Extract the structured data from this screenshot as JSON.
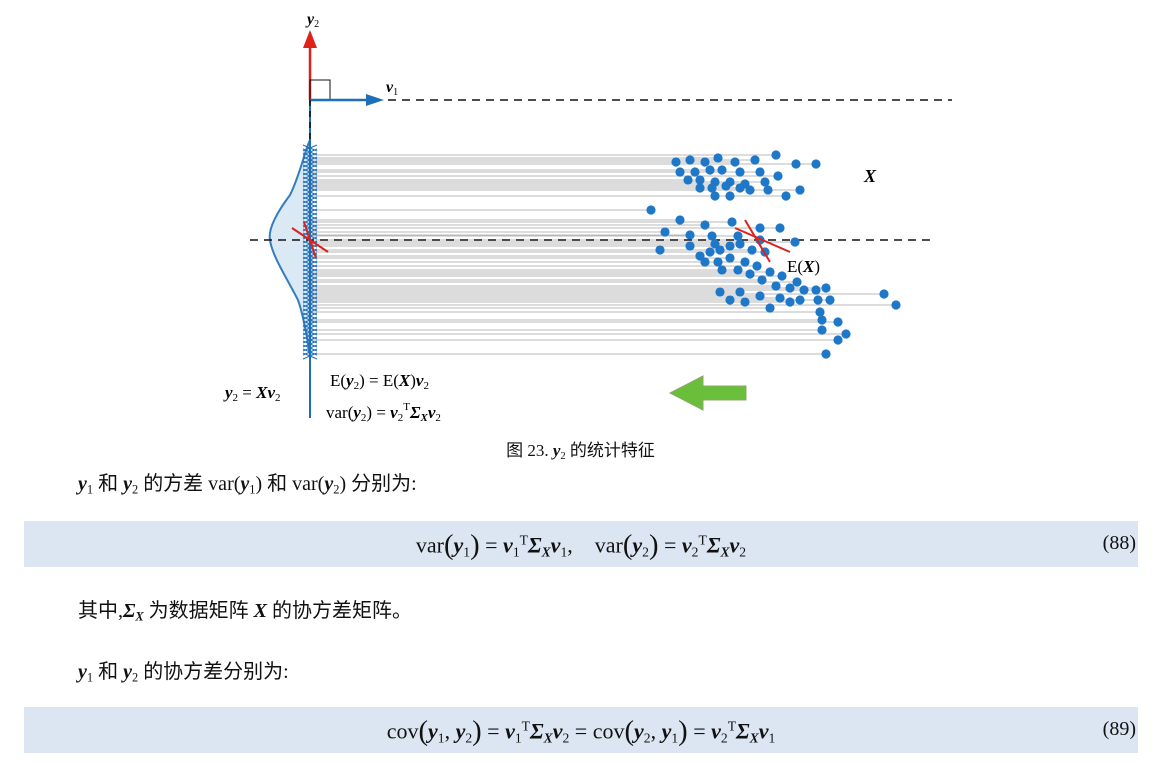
{
  "figure": {
    "v1_label": "v",
    "v1_sub": "1",
    "v2_label": "y",
    "v2_sub": "2",
    "X_label": "X",
    "EX_label": "E(X)",
    "eq_y2": "y2 = Xv2",
    "eq_E": "E(y2) = E(X)v2",
    "eq_var": "var(y2) = v2TΣXv2",
    "colors": {
      "points": "#1f77c8",
      "v1": "#1f6fb8",
      "v2": "#e0201b",
      "arrow": "#6abf3a",
      "arrow_edge": "#8aa86a"
    }
  },
  "caption": {
    "prefix": "图 23. ",
    "var": "y",
    "sub": "2",
    "suffix": " 的统计特征"
  },
  "paragraph1": {
    "text": "和 的方差 var() 和 var() 分别为:"
  },
  "equation88": {
    "number": "(88)"
  },
  "paragraph2": {
    "text": "其中,Σ 为数据矩阵 X 的协方差矩阵。"
  },
  "paragraph3": {
    "text": "和 的协方差分别为:"
  },
  "equation89": {
    "number": "(89)"
  }
}
